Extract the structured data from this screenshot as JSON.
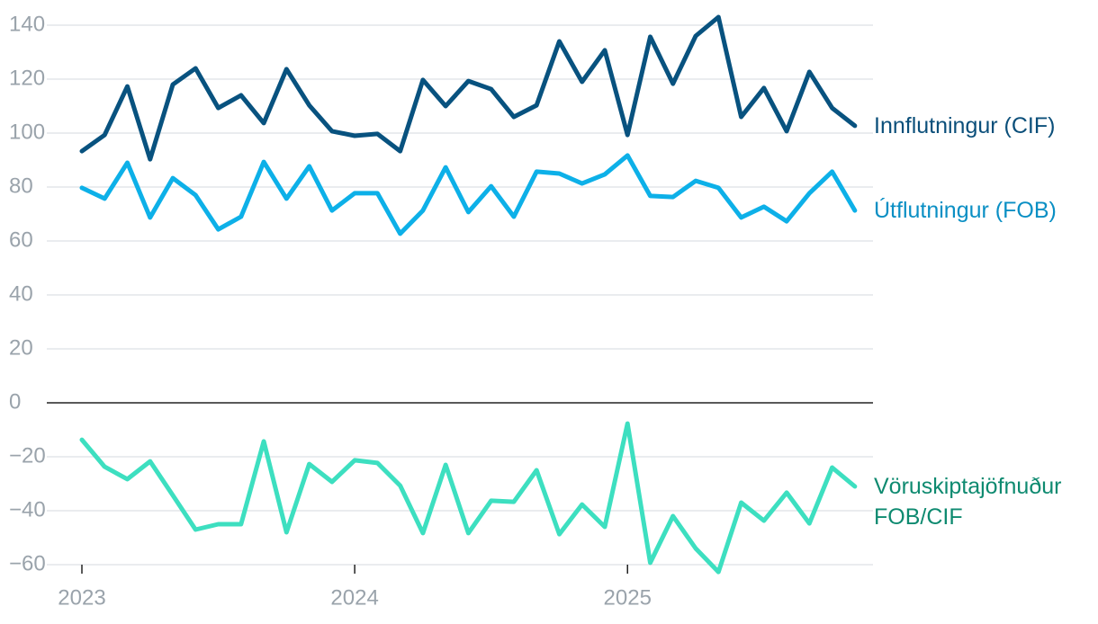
{
  "chart_data": {
    "type": "line",
    "categories": [
      "2023",
      null,
      null,
      null,
      null,
      null,
      null,
      null,
      null,
      null,
      null,
      null,
      "2024",
      null,
      null,
      null,
      null,
      null,
      null,
      null,
      null,
      null,
      null,
      null,
      "2025",
      null,
      null,
      null,
      null,
      null,
      null,
      null,
      null,
      null,
      null
    ],
    "series": [
      {
        "name": "Innflutningur (CIF)",
        "color": "#08527f",
        "label_color": "#0b4f7a",
        "values": [
          93.3,
          99.3,
          117.3,
          90.3,
          118,
          124,
          109.3,
          114,
          103.7,
          123.7,
          110.3,
          100.7,
          99,
          99.7,
          93.3,
          119.7,
          110,
          119.3,
          116.3,
          106,
          110.3,
          134,
          119,
          130.7,
          99.3,
          135.7,
          118.3,
          136,
          143,
          106,
          116.7,
          100.7,
          122.7,
          109.3,
          102.7
        ]
      },
      {
        "name": "Útflutningur (FOB)",
        "color": "#0db0e8",
        "label_color": "#0a8fc4",
        "values": [
          79.7,
          75.7,
          89,
          68.7,
          83.3,
          77,
          64.3,
          69,
          89.3,
          75.7,
          87.7,
          71.3,
          77.7,
          77.7,
          62.7,
          71.3,
          87.3,
          70.7,
          80.3,
          69,
          85.7,
          85,
          81.3,
          84.7,
          91.7,
          76.7,
          76.3,
          82.3,
          79.7,
          68.7,
          72.7,
          67.3,
          77.7,
          85.7,
          71.3
        ]
      },
      {
        "name": "Vöruskiptajöfnuður FOB/CIF",
        "color": "#3ddfc0",
        "label_color": "#0e8a70",
        "values": [
          -13.7,
          -23.7,
          -28.3,
          -21.7,
          -34.3,
          -47,
          -45,
          -45,
          -14.3,
          -48,
          -22.7,
          -29.3,
          -21.3,
          -22.3,
          -30.7,
          -48.3,
          -23,
          -48.3,
          -36.3,
          -36.7,
          -25,
          -48.7,
          -37.7,
          -46,
          -7.7,
          -59.3,
          -42,
          -54,
          -62.7,
          -37,
          -43.7,
          -33.3,
          -44.7,
          -24,
          -31
        ]
      }
    ],
    "ylim": [
      -63,
      145
    ],
    "yticks": [
      {
        "value": -60,
        "label": "−60"
      },
      {
        "value": -40,
        "label": "−40"
      },
      {
        "value": -20,
        "label": "−20"
      },
      0,
      20,
      40,
      60,
      80,
      100,
      120,
      140
    ],
    "grid": true
  }
}
